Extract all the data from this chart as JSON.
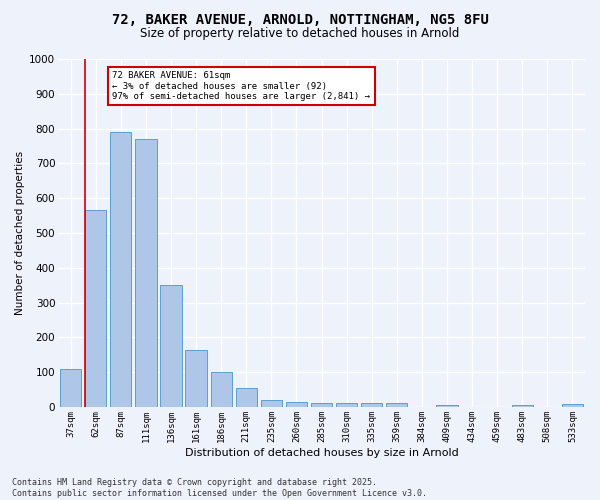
{
  "title_line1": "72, BAKER AVENUE, ARNOLD, NOTTINGHAM, NG5 8FU",
  "title_line2": "Size of property relative to detached houses in Arnold",
  "xlabel": "Distribution of detached houses by size in Arnold",
  "ylabel": "Number of detached properties",
  "categories": [
    "37sqm",
    "62sqm",
    "87sqm",
    "111sqm",
    "136sqm",
    "161sqm",
    "186sqm",
    "211sqm",
    "235sqm",
    "260sqm",
    "285sqm",
    "310sqm",
    "335sqm",
    "359sqm",
    "384sqm",
    "409sqm",
    "434sqm",
    "459sqm",
    "483sqm",
    "508sqm",
    "533sqm"
  ],
  "values": [
    110,
    565,
    790,
    770,
    350,
    165,
    100,
    55,
    20,
    13,
    12,
    10,
    10,
    10,
    0,
    5,
    0,
    0,
    5,
    0,
    7
  ],
  "bar_color": "#aec6e8",
  "bar_edge_color": "#5a9fd4",
  "red_line_index": 1,
  "annotation_line1": "72 BAKER AVENUE: 61sqm",
  "annotation_line2": "← 3% of detached houses are smaller (92)",
  "annotation_line3": "97% of semi-detached houses are larger (2,841) →",
  "annotation_box_color": "#ffffff",
  "annotation_box_edge": "#cc0000",
  "ylim": [
    0,
    1000
  ],
  "yticks": [
    0,
    100,
    200,
    300,
    400,
    500,
    600,
    700,
    800,
    900,
    1000
  ],
  "background_color": "#eef2fb",
  "grid_color": "#ffffff",
  "footer_line1": "Contains HM Land Registry data © Crown copyright and database right 2025.",
  "footer_line2": "Contains public sector information licensed under the Open Government Licence v3.0."
}
